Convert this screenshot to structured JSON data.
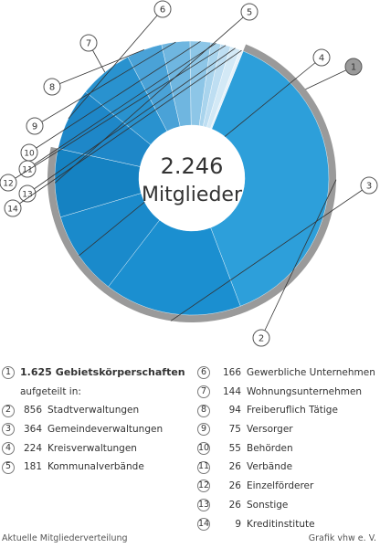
{
  "chart_data": {
    "type": "pie",
    "center_value": "2.246",
    "center_label": "Mitglieder",
    "total": 2246,
    "group": {
      "number": "1",
      "value": 1625,
      "label": "Gebietskörperschaften",
      "value_text": "1.625",
      "suffix": "aufgeteilt in:",
      "color": "#9a9a9a"
    },
    "slices": [
      {
        "number": "2",
        "value": 856,
        "value_text": "856",
        "label": "Stadtverwaltungen",
        "color": "#2d9fda"
      },
      {
        "number": "3",
        "value": 364,
        "value_text": "364",
        "label": "Gemeindeverwaltungen",
        "color": "#1b8fd0"
      },
      {
        "number": "4",
        "value": 224,
        "value_text": "224",
        "label": "Kreisverwaltungen",
        "color": "#1a8acb"
      },
      {
        "number": "5",
        "value": 181,
        "value_text": "181",
        "label": "Kommunalverbände",
        "color": "#1582c2"
      },
      {
        "number": "6",
        "value": 166,
        "value_text": "166",
        "label": "Gewerbliche Unternehmen",
        "color": "#1e87c8"
      },
      {
        "number": "7",
        "value": 144,
        "value_text": "144",
        "label": "Wohnungsunternehmen",
        "color": "#2992cf"
      },
      {
        "number": "8",
        "value": 94,
        "value_text": "94",
        "label": "Freiberuflich Tätige",
        "color": "#4aa2d7"
      },
      {
        "number": "9",
        "value": 75,
        "value_text": "75",
        "label": "Versorger",
        "color": "#6fb6e0"
      },
      {
        "number": "10",
        "value": 55,
        "value_text": "55",
        "label": "Behörden",
        "color": "#8dc6e7"
      },
      {
        "number": "11",
        "value": 26,
        "value_text": "26",
        "label": "Verbände",
        "color": "#a9d4ed"
      },
      {
        "number": "12",
        "value": 26,
        "value_text": "26",
        "label": "Einzelförderer",
        "color": "#bedef2"
      },
      {
        "number": "13",
        "value": 26,
        "value_text": "26",
        "label": "Sonstige",
        "color": "#d3e9f6"
      },
      {
        "number": "14",
        "value": 9,
        "value_text": "9",
        "label": "Kreditinstitute",
        "color": "#e6f2fa"
      }
    ]
  },
  "footer": {
    "left": "Aktuelle Mitgliederverteilung",
    "right": "Grafik vhw e. V."
  }
}
